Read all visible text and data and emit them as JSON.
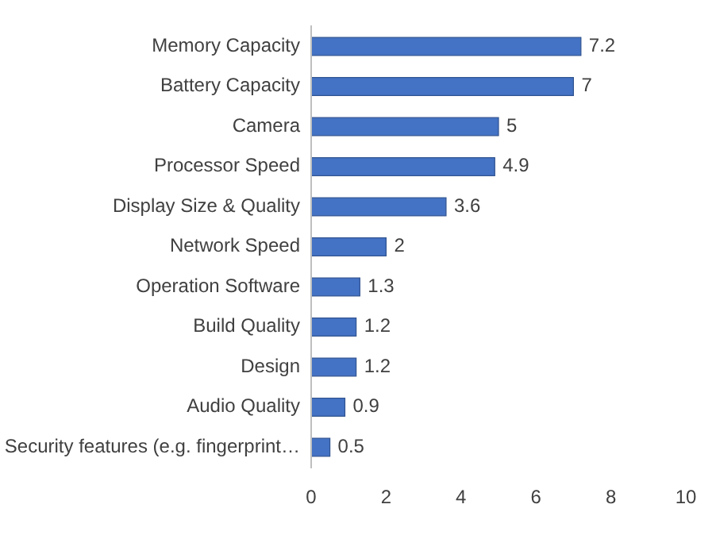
{
  "chart_data": {
    "type": "bar",
    "orientation": "horizontal",
    "categories": [
      "Memory Capacity",
      "Battery Capacity",
      "Camera",
      "Processor Speed",
      "Display Size & Quality",
      "Network Speed",
      "Operation Software",
      "Build Quality",
      "Design",
      "Audio Quality",
      "Security features (e.g. fingerprint…"
    ],
    "values": [
      7.2,
      7,
      5,
      4.9,
      3.6,
      2,
      1.3,
      1.2,
      1.2,
      0.9,
      0.5
    ],
    "color": "#4472c4",
    "xlim": [
      0,
      10
    ],
    "xticks": [
      0,
      2,
      4,
      6,
      8,
      10
    ],
    "data_labels": true,
    "grid": false
  }
}
